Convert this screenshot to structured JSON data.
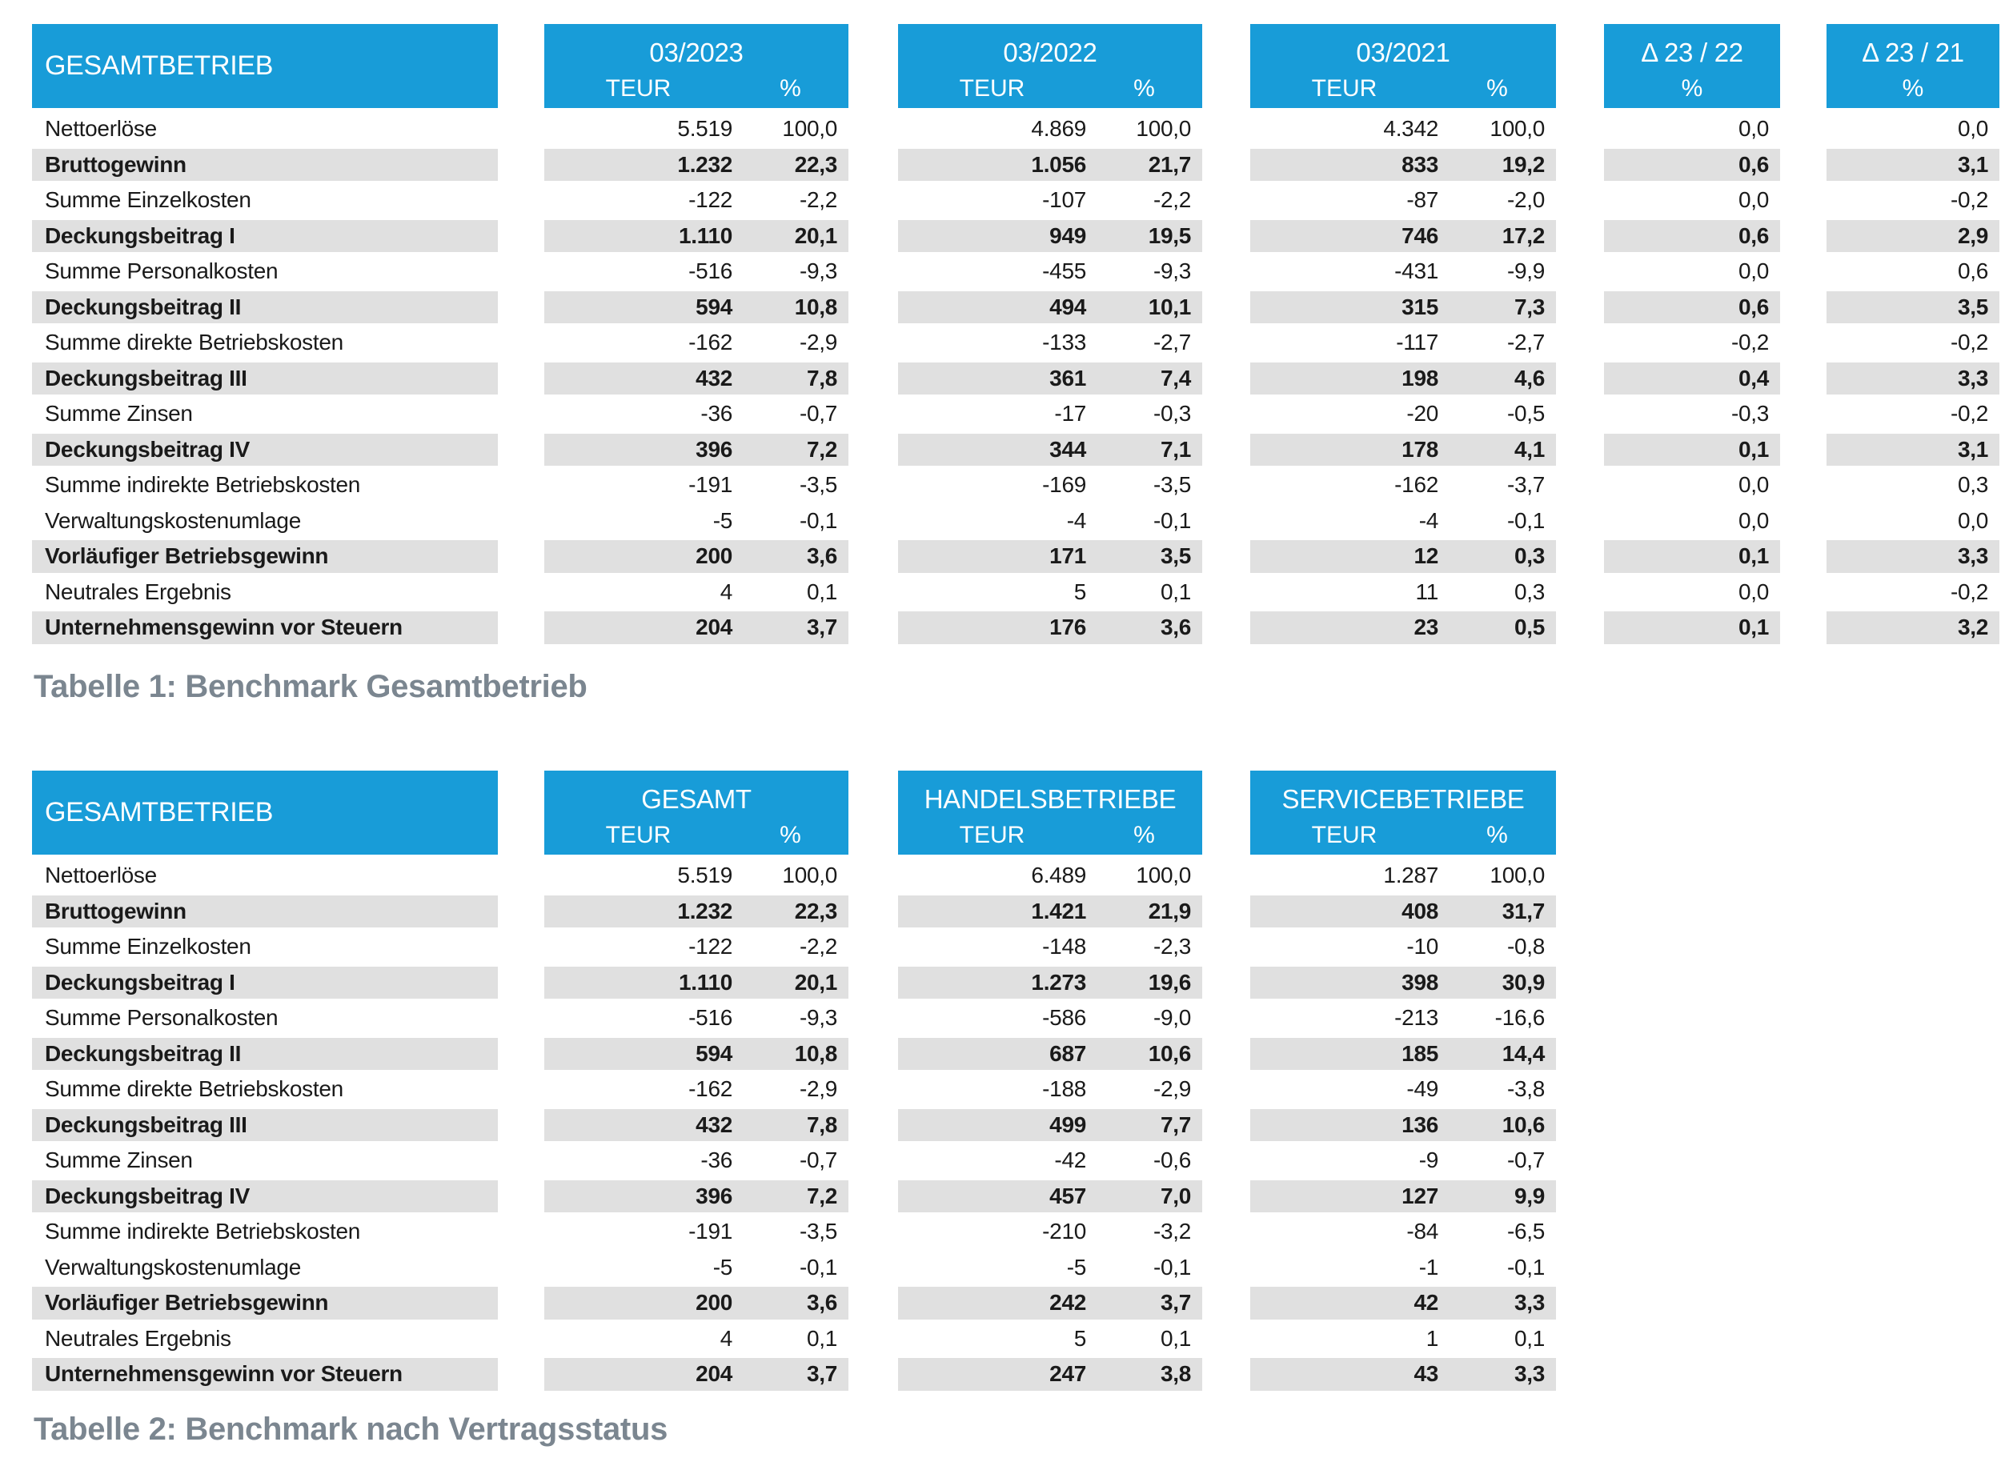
{
  "colors": {
    "header_blue": "#189CD8",
    "stripe_gray": "#E0E0E0",
    "caption_gray": "#7B8690",
    "text": "#1A1A1A"
  },
  "units": {
    "teur": "TEUR",
    "pct": "%"
  },
  "row_labels": [
    "Nettoerlöse",
    "Bruttogewinn",
    "Summe Einzelkosten",
    "Deckungsbeitrag I",
    "Summe Personalkosten",
    "Deckungsbeitrag II",
    "Summe direkte Betriebskosten",
    "Deckungsbeitrag III",
    "Summe Zinsen",
    "Deckungsbeitrag IV",
    "Summe indirekte Betriebskosten",
    "Verwaltungskostenumlage",
    "Vorläufiger Betriebsgewinn",
    "Neutrales Ergebnis",
    "Unternehmensgewinn vor Steuern"
  ],
  "row_bold": [
    false,
    true,
    false,
    true,
    false,
    true,
    false,
    true,
    false,
    true,
    false,
    false,
    true,
    false,
    true
  ],
  "table1": {
    "title": "GESAMTBETRIEB",
    "caption": "Tabelle 1: Benchmark Gesamtbetrieb",
    "groups": [
      {
        "title": "03/2023",
        "teur": [
          "5.519",
          "1.232",
          "-122",
          "1.110",
          "-516",
          "594",
          "-162",
          "432",
          "-36",
          "396",
          "-191",
          "-5",
          "200",
          "4",
          "204"
        ],
        "pct": [
          "100,0",
          "22,3",
          "-2,2",
          "20,1",
          "-9,3",
          "10,8",
          "-2,9",
          "7,8",
          "-0,7",
          "7,2",
          "-3,5",
          "-0,1",
          "3,6",
          "0,1",
          "3,7"
        ]
      },
      {
        "title": "03/2022",
        "teur": [
          "4.869",
          "1.056",
          "-107",
          "949",
          "-455",
          "494",
          "-133",
          "361",
          "-17",
          "344",
          "-169",
          "-4",
          "171",
          "5",
          "176"
        ],
        "pct": [
          "100,0",
          "21,7",
          "-2,2",
          "19,5",
          "-9,3",
          "10,1",
          "-2,7",
          "7,4",
          "-0,3",
          "7,1",
          "-3,5",
          "-0,1",
          "3,5",
          "0,1",
          "3,6"
        ]
      },
      {
        "title": "03/2021",
        "teur": [
          "4.342",
          "833",
          "-87",
          "746",
          "-431",
          "315",
          "-117",
          "198",
          "-20",
          "178",
          "-162",
          "-4",
          "12",
          "11",
          "23"
        ],
        "pct": [
          "100,0",
          "19,2",
          "-2,0",
          "17,2",
          "-9,9",
          "7,3",
          "-2,7",
          "4,6",
          "-0,5",
          "4,1",
          "-3,7",
          "-0,1",
          "0,3",
          "0,3",
          "0,5"
        ]
      },
      {
        "title": "Δ 23 / 22",
        "pct": [
          "0,0",
          "0,6",
          "0,0",
          "0,6",
          "0,0",
          "0,6",
          "-0,2",
          "0,4",
          "-0,3",
          "0,1",
          "0,0",
          "0,0",
          "0,1",
          "0,0",
          "0,1"
        ]
      },
      {
        "title": "Δ 23 / 21",
        "pct": [
          "0,0",
          "3,1",
          "-0,2",
          "2,9",
          "0,6",
          "3,5",
          "-0,2",
          "3,3",
          "-0,2",
          "3,1",
          "0,3",
          "0,0",
          "3,3",
          "-0,2",
          "3,2"
        ]
      }
    ]
  },
  "table2": {
    "title": "GESAMTBETRIEB",
    "caption": "Tabelle 2: Benchmark nach Vertragsstatus",
    "groups": [
      {
        "title": "GESAMT",
        "teur": [
          "5.519",
          "1.232",
          "-122",
          "1.110",
          "-516",
          "594",
          "-162",
          "432",
          "-36",
          "396",
          "-191",
          "-5",
          "200",
          "4",
          "204"
        ],
        "pct": [
          "100,0",
          "22,3",
          "-2,2",
          "20,1",
          "-9,3",
          "10,8",
          "-2,9",
          "7,8",
          "-0,7",
          "7,2",
          "-3,5",
          "-0,1",
          "3,6",
          "0,1",
          "3,7"
        ]
      },
      {
        "title": "HANDELSBETRIEBE",
        "teur": [
          "6.489",
          "1.421",
          "-148",
          "1.273",
          "-586",
          "687",
          "-188",
          "499",
          "-42",
          "457",
          "-210",
          "-5",
          "242",
          "5",
          "247"
        ],
        "pct": [
          "100,0",
          "21,9",
          "-2,3",
          "19,6",
          "-9,0",
          "10,6",
          "-2,9",
          "7,7",
          "-0,6",
          "7,0",
          "-3,2",
          "-0,1",
          "3,7",
          "0,1",
          "3,8"
        ]
      },
      {
        "title": "SERVICEBETRIEBE",
        "teur": [
          "1.287",
          "408",
          "-10",
          "398",
          "-213",
          "185",
          "-49",
          "136",
          "-9",
          "127",
          "-84",
          "-1",
          "42",
          "1",
          "43"
        ],
        "pct": [
          "100,0",
          "31,7",
          "-0,8",
          "30,9",
          "-16,6",
          "14,4",
          "-3,8",
          "10,6",
          "-0,7",
          "9,9",
          "-6,5",
          "-0,1",
          "3,3",
          "0,1",
          "3,3"
        ]
      }
    ]
  }
}
